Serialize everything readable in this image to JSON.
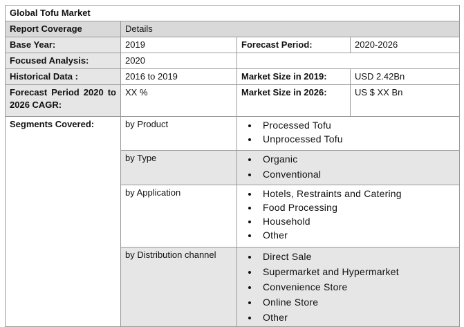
{
  "title": "Global Tofu Market",
  "rows": [
    [
      "Report Coverage",
      "Details"
    ],
    [
      "Base Year:",
      "2019",
      "Forecast Period:",
      "2020-2026"
    ],
    [
      "Focused Analysis:",
      "2020"
    ],
    [
      "Historical Data :",
      "2016 to 2019",
      "Market Size in 2019:",
      "USD 2.42Bn"
    ],
    [
      "Forecast Period 2020 to 2026 CAGR:",
      "XX %",
      "Market Size in 2026:",
      "US $ XX Bn"
    ]
  ],
  "segments": {
    "label": "Segments Covered:",
    "groups": [
      {
        "name": "by Product",
        "items": [
          "Processed Tofu",
          "Unprocessed Tofu"
        ]
      },
      {
        "name": "by Type",
        "items": [
          "Organic",
          "Conventional"
        ]
      },
      {
        "name": "by Application",
        "items": [
          "Hotels, Restraints and Catering",
          "Food Processing",
          "Household",
          "Other"
        ]
      },
      {
        "name": "by Distribution channel",
        "items": [
          "Direct Sale",
          "Supermarket and Hypermarket",
          "Convenience Store",
          "Online Store",
          "Other"
        ]
      }
    ]
  }
}
